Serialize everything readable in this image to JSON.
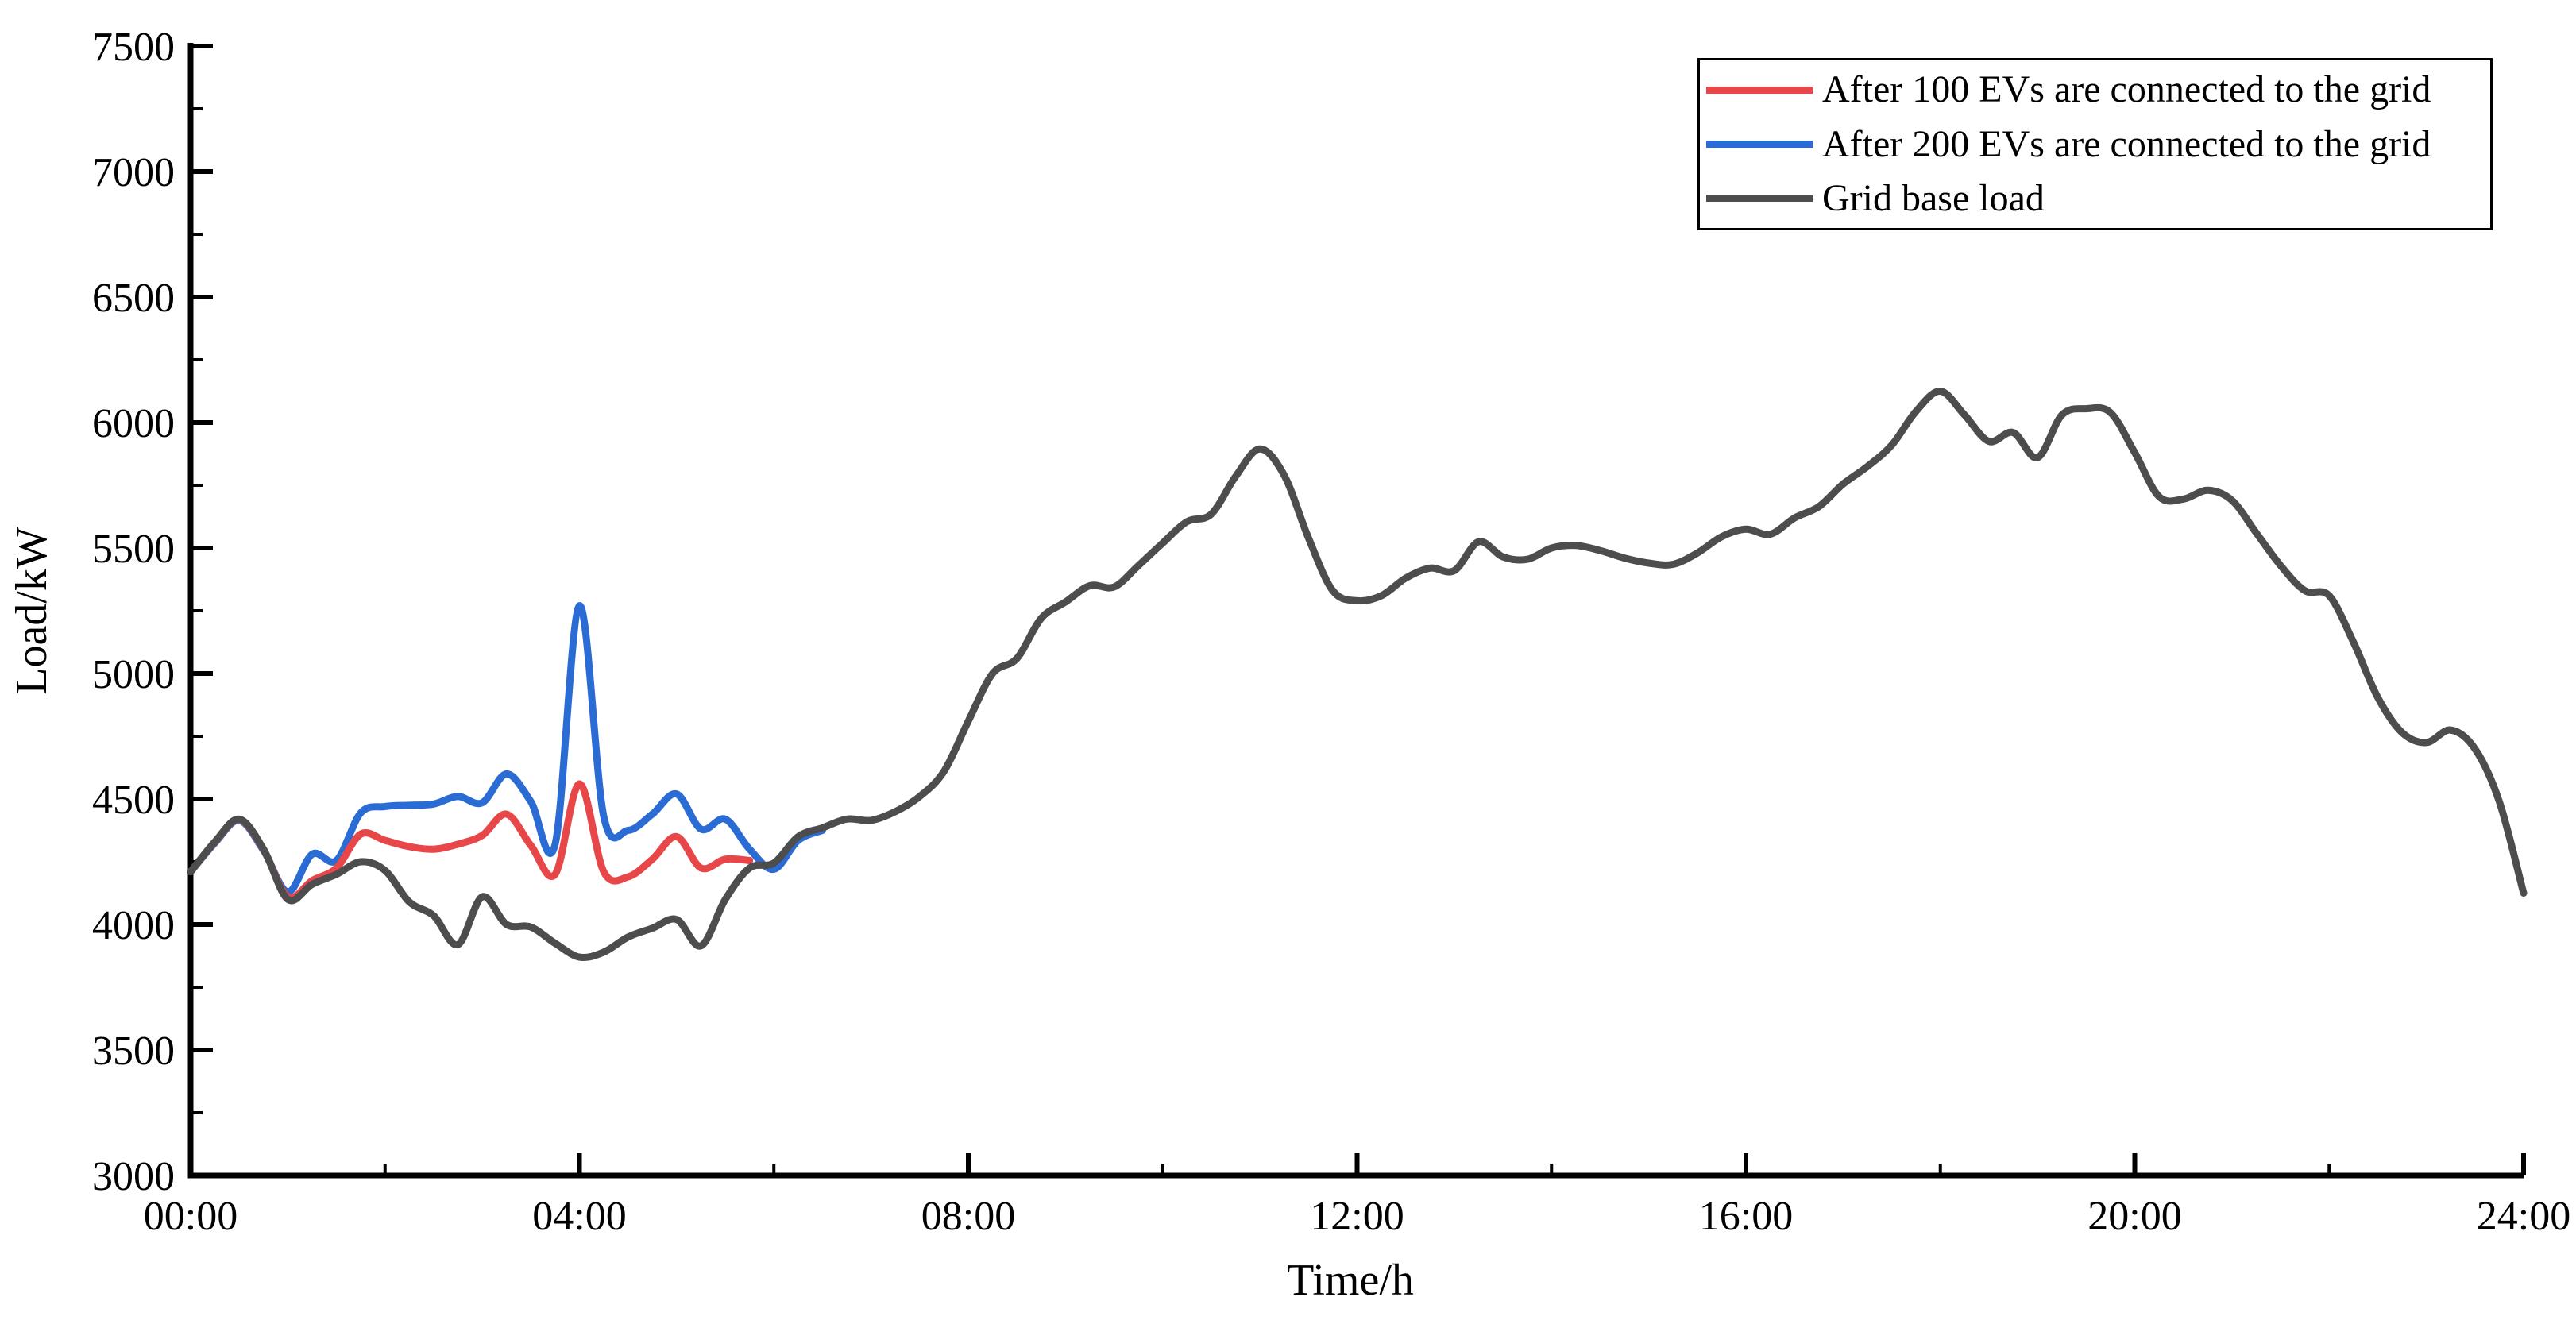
{
  "chart_data": {
    "type": "line",
    "title": "",
    "xlabel": "Time/h",
    "ylabel": "Load/kW",
    "xlim": [
      0,
      24
    ],
    "ylim": [
      3000,
      7500
    ],
    "grid": false,
    "legend_position": "top-right",
    "axis_color": "#000000",
    "background_color": "#ffffff",
    "x_major_labels": [
      "00:00",
      "04:00",
      "08:00",
      "12:00",
      "16:00",
      "20:00",
      "24:00"
    ],
    "x_major_values": [
      0,
      4,
      8,
      12,
      16,
      20,
      24
    ],
    "x_minor_values": [
      2,
      6,
      10,
      14,
      18,
      22
    ],
    "y_major_labels": [
      "3000",
      "3500",
      "4000",
      "4500",
      "5000",
      "5500",
      "6000",
      "6500",
      "7000",
      "7500"
    ],
    "y_major_values": [
      3000,
      3500,
      4000,
      4500,
      5000,
      5500,
      6000,
      6500,
      7000,
      7500
    ],
    "y_minor_values": [
      3250,
      3750,
      4250,
      4750,
      5250,
      5750,
      6250,
      6750,
      7250
    ],
    "series": [
      {
        "id": "ev100",
        "name": "After 100 EVs are connected to the grid",
        "color": "#E8474A",
        "z": 2,
        "x_start": 0,
        "x_step": 0.25,
        "values": [
          4210,
          4328,
          4418,
          4298,
          4110,
          4175,
          4225,
          4360,
          4335,
          4310,
          4300,
          4320,
          4355,
          4440,
          4315,
          4200,
          4560,
          4210,
          4190,
          4260,
          4350,
          4225,
          4260,
          4255
        ]
      },
      {
        "id": "ev200",
        "name": "After 200 EVs are connected to the grid",
        "color": "#2B6CD4",
        "z": 1,
        "x_start": 0,
        "x_step": 0.25,
        "values": [
          4210,
          4325,
          4415,
          4295,
          4130,
          4280,
          4255,
          4445,
          4470,
          4475,
          4480,
          4510,
          4485,
          4600,
          4490,
          4320,
          5270,
          4430,
          4375,
          4440,
          4520,
          4380,
          4420,
          4300,
          4220,
          4335,
          4375
        ]
      },
      {
        "id": "base",
        "name": "Grid base load",
        "color": "#4D4D4D",
        "z": 3,
        "x_start": 0,
        "x_step": 0.25,
        "values": [
          4210,
          4330,
          4420,
          4300,
          4100,
          4160,
          4200,
          4250,
          4215,
          4090,
          4035,
          3920,
          4110,
          4000,
          3990,
          3925,
          3870,
          3890,
          3950,
          3985,
          4020,
          3915,
          4100,
          4225,
          4245,
          4350,
          4385,
          4420,
          4415,
          4450,
          4510,
          4610,
          4810,
          5000,
          5060,
          5220,
          5285,
          5350,
          5345,
          5430,
          5520,
          5605,
          5635,
          5785,
          5895,
          5790,
          5540,
          5330,
          5290,
          5310,
          5380,
          5420,
          5410,
          5525,
          5465,
          5455,
          5500,
          5510,
          5490,
          5460,
          5440,
          5435,
          5480,
          5545,
          5575,
          5555,
          5620,
          5665,
          5755,
          5825,
          5910,
          6045,
          6125,
          6030,
          5925,
          5960,
          5860,
          6030,
          6055,
          6040,
          5880,
          5705,
          5695,
          5730,
          5690,
          5560,
          5430,
          5330,
          5310,
          5125,
          4905,
          4765,
          4725,
          4775,
          4700,
          4490,
          4125
        ]
      }
    ]
  }
}
